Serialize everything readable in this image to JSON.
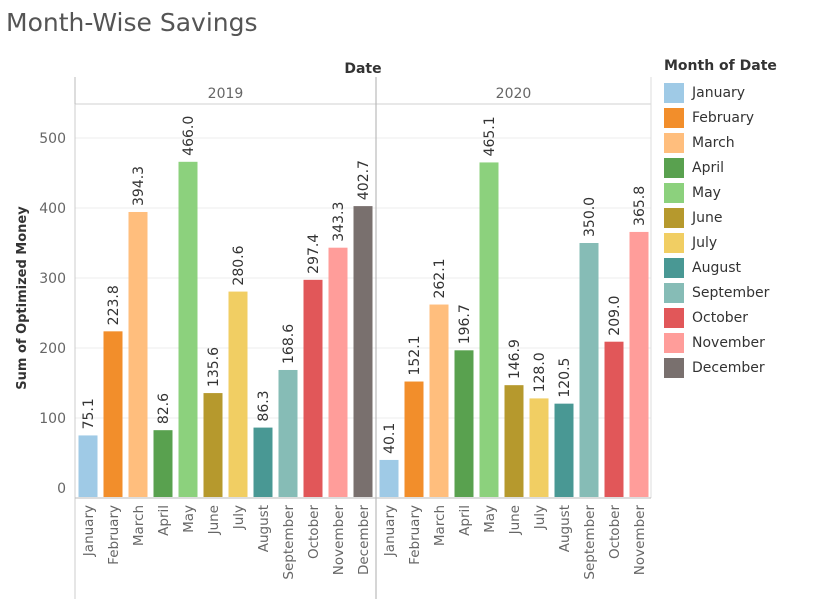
{
  "title": "Month-Wise Savings",
  "legend": {
    "title": "Month of Date",
    "items": [
      {
        "label": "January",
        "color": "#9fcae6"
      },
      {
        "label": "February",
        "color": "#f28e2b"
      },
      {
        "label": "March",
        "color": "#ffbe7d"
      },
      {
        "label": "April",
        "color": "#59a14f"
      },
      {
        "label": "May",
        "color": "#8cd17d"
      },
      {
        "label": "June",
        "color": "#b6992d"
      },
      {
        "label": "July",
        "color": "#f1ce63"
      },
      {
        "label": "August",
        "color": "#499894"
      },
      {
        "label": "September",
        "color": "#86bcb6"
      },
      {
        "label": "October",
        "color": "#e15759"
      },
      {
        "label": "November",
        "color": "#ff9d9a"
      },
      {
        "label": "December",
        "color": "#79706e"
      }
    ]
  },
  "chart_data": {
    "type": "bar",
    "column_header": "Date",
    "ylabel": "Sum of Optimized Money",
    "ylim": [
      0,
      550
    ],
    "yticks": [
      0,
      100,
      200,
      300,
      400,
      500
    ],
    "grid": true,
    "legend_position": "right",
    "panels": [
      {
        "name": "2019",
        "categories": [
          "January",
          "February",
          "March",
          "April",
          "May",
          "June",
          "July",
          "August",
          "September",
          "October",
          "November",
          "December"
        ],
        "values": [
          75.1,
          223.8,
          394.3,
          82.6,
          466.0,
          135.6,
          280.6,
          86.3,
          168.6,
          297.4,
          343.3,
          402.7
        ],
        "labels": [
          "75.1",
          "223.8",
          "394.3",
          "82.6",
          "466.0",
          "135.6",
          "280.6",
          "86.3",
          "168.6",
          "297.4",
          "343.3",
          "402.7"
        ]
      },
      {
        "name": "2020",
        "categories": [
          "January",
          "February",
          "March",
          "April",
          "May",
          "June",
          "July",
          "August",
          "September",
          "October",
          "November"
        ],
        "values": [
          40.1,
          152.1,
          262.1,
          196.7,
          465.1,
          146.9,
          128.0,
          120.5,
          350.0,
          209.0,
          365.8
        ],
        "labels": [
          "40.1",
          "152.1",
          "262.1",
          "196.7",
          "465.1",
          "146.9",
          "128.0",
          "120.5",
          "350.0",
          "209.0",
          "365.8"
        ]
      }
    ]
  }
}
